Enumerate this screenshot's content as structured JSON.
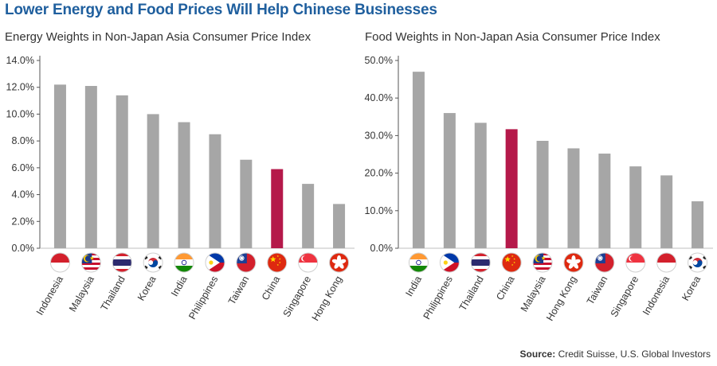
{
  "title": "Lower Energy and Food Prices Will Help Chinese Businesses",
  "source_label": "Source:",
  "source_text": "Credit Suisse, U.S. Global Investors",
  "colors": {
    "bar": "#a6a6a6",
    "highlight": "#b5194a",
    "title": "#1f5f9e"
  },
  "chart_data": [
    {
      "type": "bar",
      "title": "Energy Weights in Non-Japan Asia Consumer Price Index",
      "categories": [
        "Indonesia",
        "Malaysia",
        "Thailand",
        "Korea",
        "India",
        "Philippines",
        "Taiwan",
        "China",
        "Singapore",
        "Hong Kong"
      ],
      "values": [
        12.2,
        12.1,
        11.4,
        10.0,
        9.4,
        8.5,
        6.6,
        5.9,
        4.8,
        3.3
      ],
      "highlight": "China",
      "ylim": [
        0,
        14
      ],
      "yticks": [
        "0.0%",
        "2.0%",
        "4.0%",
        "6.0%",
        "8.0%",
        "10.0%",
        "12.0%",
        "14.0%"
      ],
      "flag_icons": [
        "indonesia-flag-icon",
        "malaysia-flag-icon",
        "thailand-flag-icon",
        "korea-flag-icon",
        "india-flag-icon",
        "philippines-flag-icon",
        "taiwan-flag-icon",
        "china-flag-icon",
        "singapore-flag-icon",
        "hong-kong-flag-icon"
      ],
      "grid": false
    },
    {
      "type": "bar",
      "title": "Food Weights in Non-Japan Asia Consumer Price Index",
      "categories": [
        "India",
        "Philippines",
        "Thailand",
        "China",
        "Malaysia",
        "Hong Kong",
        "Taiwan",
        "Singapore",
        "Indonesia",
        "Korea"
      ],
      "values": [
        47.0,
        36.0,
        33.4,
        31.7,
        28.6,
        26.6,
        25.2,
        21.8,
        19.4,
        12.5
      ],
      "highlight": "China",
      "ylim": [
        0,
        50
      ],
      "yticks": [
        "0.0%",
        "10.0%",
        "20.0%",
        "30.0%",
        "40.0%",
        "50.0%"
      ],
      "flag_icons": [
        "india-flag-icon",
        "philippines-flag-icon",
        "thailand-flag-icon",
        "china-flag-icon",
        "malaysia-flag-icon",
        "hong-kong-flag-icon",
        "taiwan-flag-icon",
        "singapore-flag-icon",
        "indonesia-flag-icon",
        "korea-flag-icon"
      ],
      "grid": false
    }
  ]
}
